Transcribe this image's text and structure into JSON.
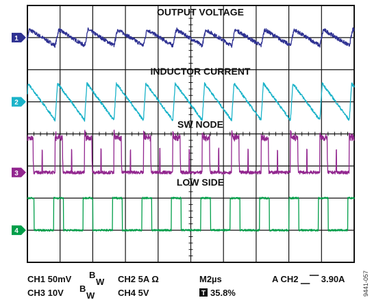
{
  "chart_data": {
    "type": "line",
    "grid": true,
    "divisions": {
      "x": 10,
      "y": 8
    },
    "time_per_div": "2µs",
    "series": [
      {
        "name": "OUTPUT VOLTAGE",
        "channel": "1",
        "color": "#2e3192",
        "baseline_div": 3.0,
        "period_div": 0.9,
        "shape": "sawtooth-down",
        "amplitude_div": 0.5
      },
      {
        "name": "INDUCTOR CURRENT",
        "channel": "2",
        "color": "#1bb3c9",
        "baseline_div": 1.0,
        "period_div": 0.9,
        "shape": "triangle",
        "amplitude_div": 1.15
      },
      {
        "name": "SW NODE",
        "channel": "3",
        "color": "#92278f",
        "baseline_div": -1.2,
        "period_div": 0.9,
        "shape": "pulse-spikes",
        "amplitude_div": 1.2
      },
      {
        "name": "LOW SIDE",
        "channel": "4",
        "color": "#009e49",
        "baseline_div": -3.0,
        "period_div": 0.9,
        "shape": "square",
        "amplitude_div": 1.0
      }
    ]
  },
  "markers": [
    {
      "label": "1",
      "color": "#2e3192"
    },
    {
      "label": "2",
      "color": "#1bb3c9"
    },
    {
      "label": "3",
      "color": "#92278f"
    },
    {
      "label": "4",
      "color": "#009e49"
    }
  ],
  "footer": {
    "ch1": "CH1  50mV",
    "bw": "B",
    "bw_sub": "W",
    "ch2": "CH2  5A  Ω",
    "timebase": "M2µs",
    "trigger": "A  CH2  ⎽⎺  3.90A",
    "ch3": "CH3  10V",
    "ch4": "CH4  5V",
    "t_marker": "T",
    "t_position": "35.8%"
  },
  "figure_id": "9441-057"
}
